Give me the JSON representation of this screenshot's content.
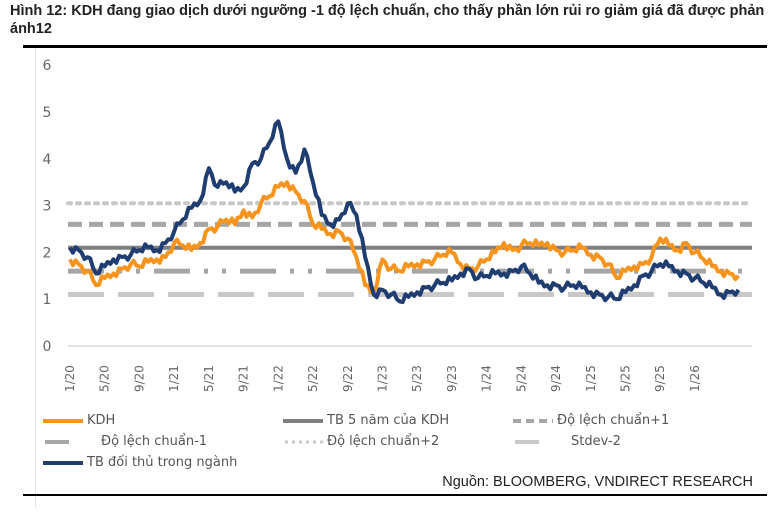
{
  "header": {
    "title": "Hình 12: KDH đang giao dịch dưới ngưỡng -1 độ lệch chuẩn, cho thấy phần lớn rủi ro giảm giá đã được phản ánh12"
  },
  "footer": {
    "source": "Nguồn: BLOOMBERG, VNDIRECT RESEARCH"
  },
  "chart_data": {
    "type": "line",
    "title": "KDH đang giao dịch dưới ngưỡng -1 độ lệch chuẩn, cho thấy phần lớn rủi ro giảm giá đã được phản ánh",
    "xlabel": "",
    "ylabel": "",
    "ylim": [
      0,
      6
    ],
    "yticks": [
      "0",
      "1",
      "2",
      "3",
      "4",
      "5",
      "6"
    ],
    "xticks": [
      "1/20",
      "5/20",
      "9/20",
      "1/21",
      "5/21",
      "9/21",
      "1/22",
      "5/22",
      "9/22",
      "1/23",
      "5/23",
      "9/23",
      "1/24",
      "5/24",
      "9/24",
      "1/25",
      "5/25",
      "9/25",
      "1/26"
    ],
    "x_start": "1/20",
    "x_step": "1 month",
    "grid": false,
    "legend_position": "bottom",
    "series": [
      {
        "name": "KDH",
        "color": "#F7941D",
        "style": "solid",
        "values": [
          1.85,
          1.75,
          1.6,
          1.3,
          1.45,
          1.55,
          1.65,
          1.75,
          1.7,
          1.8,
          1.85,
          1.9,
          2.2,
          2.15,
          2.05,
          2.2,
          2.5,
          2.55,
          2.7,
          2.6,
          2.9,
          2.75,
          3.05,
          3.2,
          3.4,
          3.5,
          3.3,
          3.1,
          2.6,
          2.5,
          2.4,
          2.45,
          2.3,
          1.9,
          1.3,
          1.15,
          1.85,
          1.65,
          1.6,
          1.7,
          1.75,
          1.8,
          1.85,
          1.95,
          2.0,
          1.75,
          1.65,
          1.7,
          1.85,
          2.0,
          2.2,
          2.05,
          2.15,
          2.2,
          2.15,
          2.2,
          2.05,
          2.0,
          2.05,
          2.1,
          1.95,
          1.9,
          1.75,
          1.45,
          1.6,
          1.7,
          1.75,
          1.9,
          2.3,
          2.15,
          2.05,
          2.2,
          2.0,
          1.85,
          1.7,
          1.6,
          1.55,
          1.5
        ]
      },
      {
        "name": "TB 5 năm của KDH",
        "color": "#7F7F7F",
        "style": "solid",
        "constant": 2.1
      },
      {
        "name": "Độ lệch chuẩn+1",
        "color": "#A6A6A6",
        "style": "dash",
        "constant": 2.6
      },
      {
        "name": "Độ lệch chuẩn-1",
        "color": "#A6A6A6",
        "style": "longdash-dot",
        "constant": 1.6
      },
      {
        "name": "Độ lệch chuẩn+2",
        "color": "#C8C8C8",
        "style": "dot",
        "constant": 3.05
      },
      {
        "name": "Stdev-2",
        "color": "#C8C8C8",
        "style": "longdash",
        "constant": 1.1
      },
      {
        "name": "TB đối thủ trong ngành",
        "color": "#1F3D70",
        "style": "solid",
        "values": [
          2.1,
          2.05,
          1.9,
          1.55,
          1.7,
          1.85,
          1.9,
          1.95,
          2.05,
          2.1,
          2.05,
          2.2,
          2.45,
          2.7,
          2.95,
          3.1,
          3.8,
          3.4,
          3.5,
          3.3,
          3.4,
          3.9,
          4.0,
          4.35,
          4.8,
          4.0,
          3.7,
          4.2,
          3.5,
          2.8,
          2.6,
          2.7,
          3.05,
          2.8,
          1.9,
          1.1,
          1.2,
          1.1,
          0.95,
          1.05,
          1.15,
          1.25,
          1.3,
          1.35,
          1.4,
          1.55,
          1.65,
          1.45,
          1.5,
          1.55,
          1.55,
          1.6,
          1.7,
          1.55,
          1.35,
          1.3,
          1.3,
          1.25,
          1.3,
          1.25,
          1.15,
          1.1,
          1.05,
          1.0,
          1.15,
          1.3,
          1.5,
          1.6,
          1.75,
          1.7,
          1.6,
          1.55,
          1.45,
          1.35,
          1.25,
          1.1,
          1.15,
          1.2
        ]
      }
    ]
  },
  "legend": {
    "items": [
      {
        "label": "KDH"
      },
      {
        "label": "TB 5 năm của KDH"
      },
      {
        "label": "Độ lệch chuẩn+1"
      },
      {
        "label": "Độ lệch chuẩn-1"
      },
      {
        "label": "Độ lệch chuẩn+2"
      },
      {
        "label": "Stdev-2"
      },
      {
        "label": "TB đối thủ trong ngành"
      }
    ]
  }
}
